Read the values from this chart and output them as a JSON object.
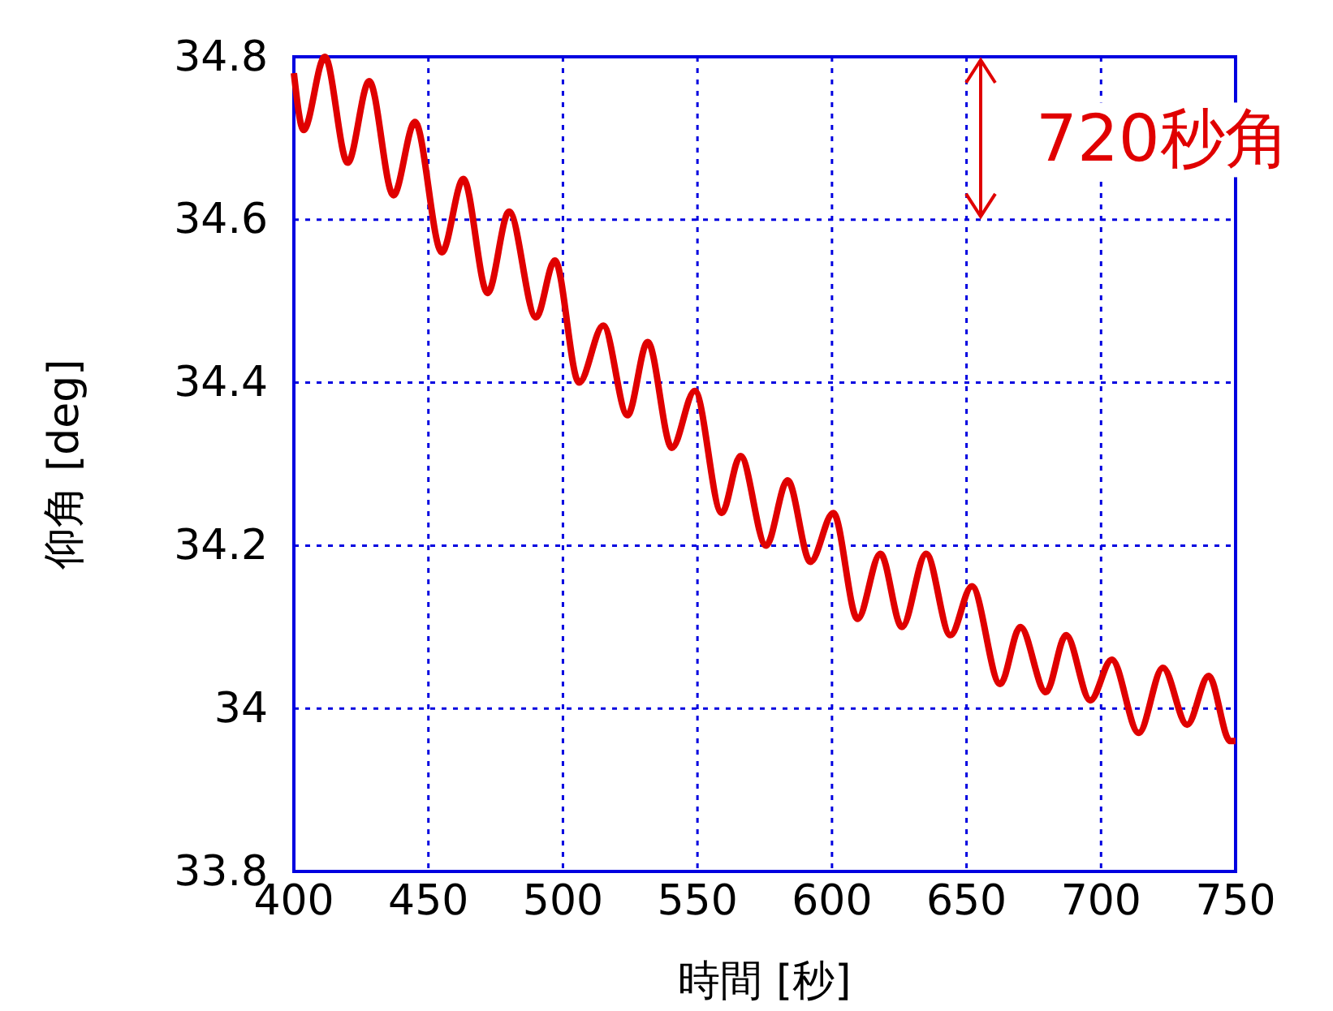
{
  "chart_data": {
    "type": "line",
    "xlabel": "時間 [秒]",
    "ylabel": "仰角 [deg]",
    "x": [
      400,
      403.6,
      411.5,
      420,
      428,
      437,
      445,
      455,
      463,
      472,
      480,
      490,
      497,
      506,
      515,
      524,
      531.5,
      540.5,
      549,
      559,
      566,
      575.5,
      583.5,
      592,
      600.5,
      609.5,
      618,
      626,
      635,
      644,
      652,
      662.5,
      670,
      679.5,
      687,
      696,
      704,
      714,
      723,
      732,
      740,
      748,
      750
    ],
    "series": [
      {
        "color": "#e00000",
        "values": [
          34.78,
          34.71,
          34.8,
          34.67,
          34.77,
          34.63,
          34.72,
          34.56,
          34.65,
          34.51,
          34.61,
          34.48,
          34.55,
          34.4,
          34.47,
          34.36,
          34.45,
          34.32,
          34.39,
          34.24,
          34.31,
          34.2,
          34.28,
          34.18,
          34.24,
          34.11,
          34.19,
          34.1,
          34.19,
          34.09,
          34.15,
          34.03,
          34.1,
          34.02,
          34.09,
          34.01,
          34.06,
          33.97,
          34.05,
          33.98,
          34.04,
          33.96,
          33.96
        ]
      }
    ],
    "xlim": [
      400,
      750
    ],
    "xticks": [
      400,
      450,
      500,
      550,
      600,
      650,
      700,
      750
    ],
    "ylim": [
      33.8,
      34.8
    ],
    "yticks": [
      33.8,
      34,
      34.2,
      34.4,
      34.6,
      34.8
    ],
    "grid": true,
    "line_style": "solid",
    "marker": "none",
    "annotations": [
      "720秒角"
    ]
  }
}
